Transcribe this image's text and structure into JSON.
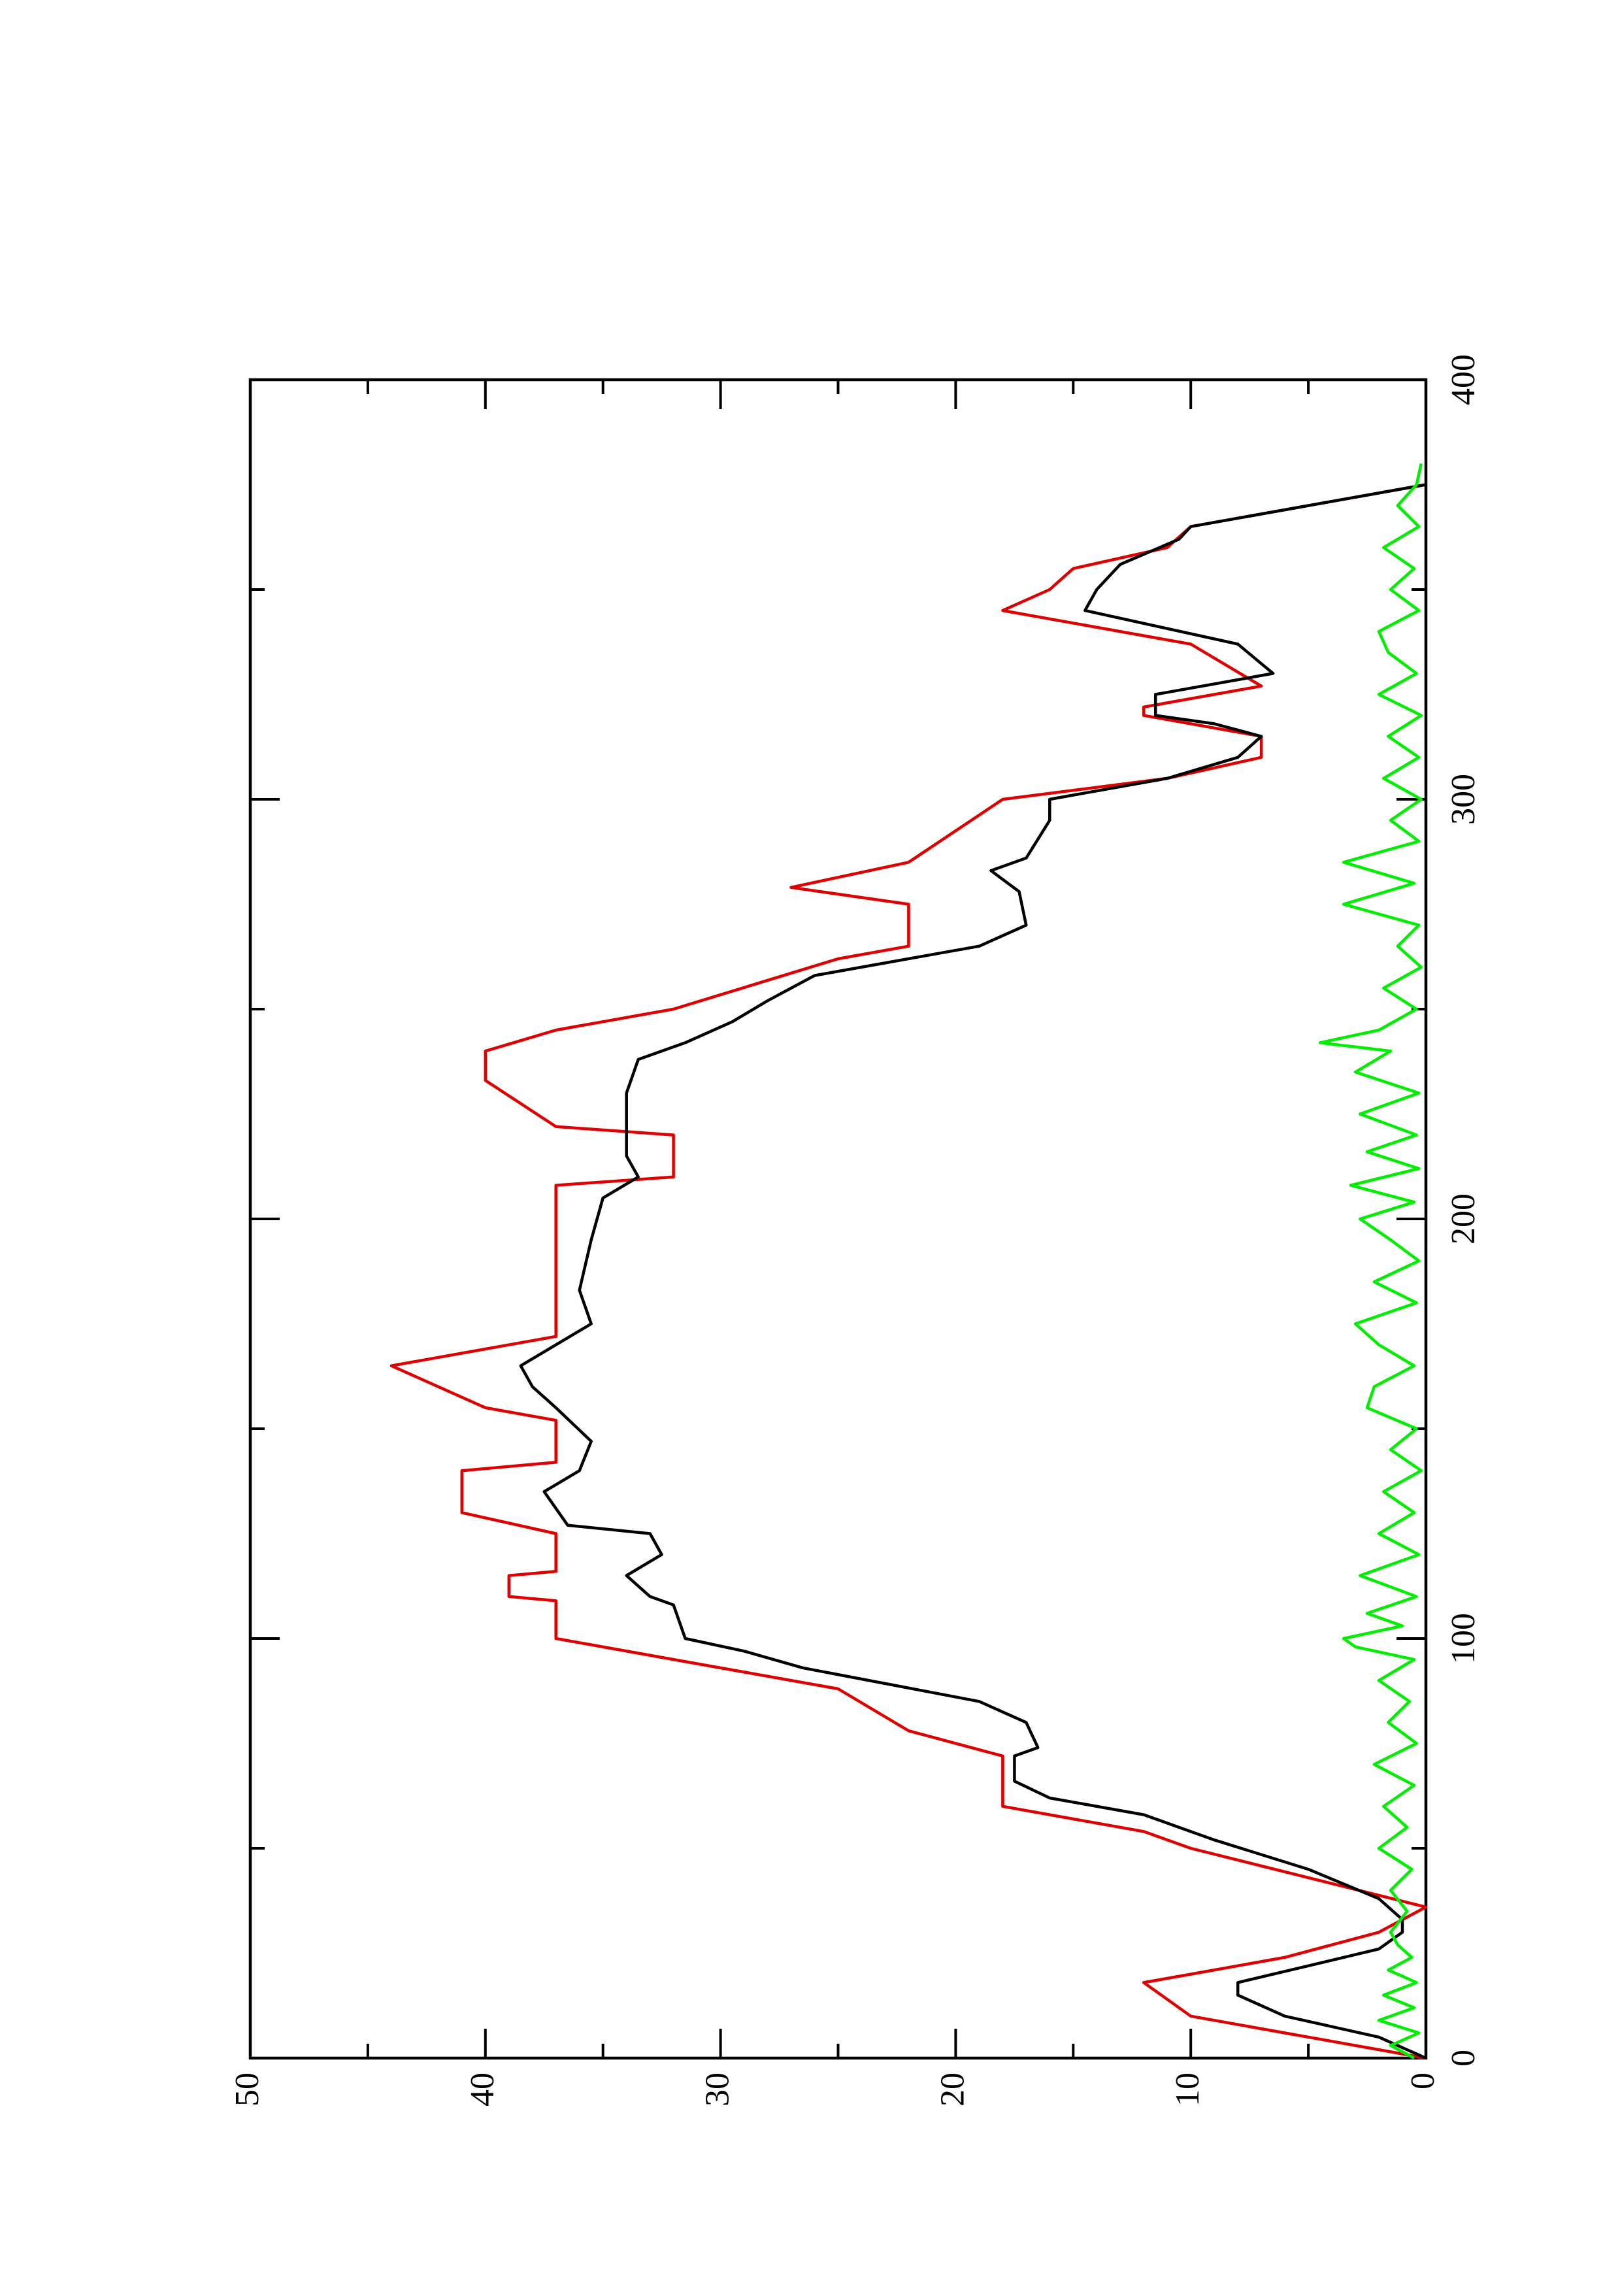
{
  "chart_data": {
    "type": "line",
    "xlim": [
      0,
      400
    ],
    "ylim": [
      0,
      50
    ],
    "xticks": [
      0,
      100,
      200,
      300,
      400
    ],
    "yticks": [
      0,
      10,
      20,
      30,
      40,
      50
    ],
    "x_minor_ticks": [
      50,
      150,
      250,
      350
    ],
    "y_minor_ticks": [
      5,
      15,
      25,
      35,
      45
    ],
    "rotation": -90,
    "series": [
      {
        "color": "#e00000",
        "x": [
          0,
          4,
          6,
          10,
          18,
          20,
          24,
          30,
          36,
          50,
          54,
          60,
          72,
          78,
          88,
          95,
          100,
          109,
          110,
          115,
          116,
          125,
          130,
          140,
          142,
          152,
          155,
          165,
          172,
          208,
          210,
          220,
          222,
          233,
          240,
          245,
          250,
          262,
          265,
          275,
          279,
          285,
          300,
          305,
          310,
          315,
          320,
          322,
          327,
          337,
          345,
          350,
          355,
          360,
          365,
          375
        ],
        "values": [
          0,
          4,
          6,
          10,
          12,
          10,
          6,
          2,
          0,
          10,
          12,
          18,
          18,
          22,
          25,
          32,
          37,
          37,
          39,
          39,
          37,
          37,
          41,
          41,
          37,
          37,
          40,
          44,
          37,
          37,
          32,
          32,
          37,
          40,
          40,
          37,
          32,
          25,
          22,
          22,
          27,
          22,
          18,
          11,
          7,
          7,
          12,
          12,
          7,
          10,
          18,
          16,
          15,
          11,
          10,
          0
        ]
      },
      {
        "color": "#000000",
        "x": [
          0,
          5,
          10,
          15,
          18,
          22,
          26,
          30,
          33,
          38,
          45,
          52,
          58,
          62,
          66,
          72,
          74,
          80,
          85,
          93,
          97,
          100,
          108,
          110,
          115,
          120,
          125,
          127,
          135,
          140,
          147,
          155,
          160,
          165,
          175,
          183,
          195,
          205,
          210,
          215,
          222,
          230,
          238,
          242,
          247,
          252,
          258,
          265,
          270,
          278,
          283,
          286,
          295,
          300,
          305,
          310,
          315,
          318,
          320,
          325,
          330,
          337,
          345,
          350,
          356,
          362,
          365,
          375
        ],
        "values": [
          0,
          2,
          6,
          8,
          8,
          5,
          2,
          1,
          1,
          2,
          5,
          9,
          12,
          16,
          17.5,
          17.5,
          16.5,
          17,
          19,
          26.5,
          29,
          31.5,
          32,
          33,
          34,
          32.5,
          33,
          36.5,
          37.5,
          36,
          35.5,
          37,
          38,
          38.5,
          35.5,
          36,
          35.5,
          35,
          33.5,
          34,
          34,
          34,
          33.5,
          31.5,
          29.5,
          28,
          26,
          19,
          17,
          17.3,
          18.5,
          17,
          16,
          16,
          11,
          8,
          7,
          9,
          11.5,
          11.5,
          6.5,
          8,
          14.5,
          14,
          13,
          10.5,
          10,
          0
        ]
      },
      {
        "color": "#00ee00",
        "x": [
          0,
          3,
          6,
          9,
          12,
          15,
          18,
          21,
          24,
          27,
          30,
          35,
          40,
          45,
          50,
          55,
          60,
          65,
          70,
          75,
          80,
          85,
          90,
          95,
          98,
          100,
          103,
          106,
          110,
          115,
          120,
          125,
          130,
          135,
          140,
          145,
          150,
          155,
          160,
          165,
          170,
          175,
          180,
          185,
          190,
          195,
          200,
          204,
          208,
          212,
          216,
          220,
          225,
          230,
          235,
          240,
          242,
          245,
          250,
          255,
          260,
          265,
          270,
          275,
          280,
          285,
          290,
          295,
          300,
          305,
          310,
          315,
          320,
          325,
          330,
          335,
          340,
          345,
          350,
          355,
          360,
          365,
          370,
          375,
          380
        ],
        "values": [
          0.5,
          1.5,
          0.3,
          2,
          0.5,
          1.8,
          0.4,
          1.6,
          0.6,
          1.2,
          1.5,
          0.8,
          1.5,
          0.6,
          2,
          0.8,
          1.8,
          0.5,
          2.2,
          0.4,
          1.6,
          0.7,
          2,
          0.5,
          3,
          3.5,
          1,
          2.5,
          0.4,
          2.8,
          0.3,
          2,
          0.5,
          1.8,
          0.2,
          1.5,
          0.4,
          2.5,
          2.2,
          0.5,
          2,
          3,
          0.4,
          2.2,
          0.3,
          1.5,
          2.8,
          0.5,
          3.2,
          0.3,
          2.5,
          0.4,
          2.8,
          0.3,
          3,
          1.5,
          4.5,
          2,
          0.4,
          1.8,
          0.2,
          1.2,
          0.3,
          3.5,
          0.5,
          3.5,
          0.3,
          1.5,
          0.2,
          1.8,
          0.3,
          1.6,
          0.2,
          2,
          0.4,
          1.6,
          2,
          0.3,
          1.5,
          0.5,
          1.8,
          0.3,
          1.2,
          0.4,
          0.2
        ]
      }
    ]
  }
}
